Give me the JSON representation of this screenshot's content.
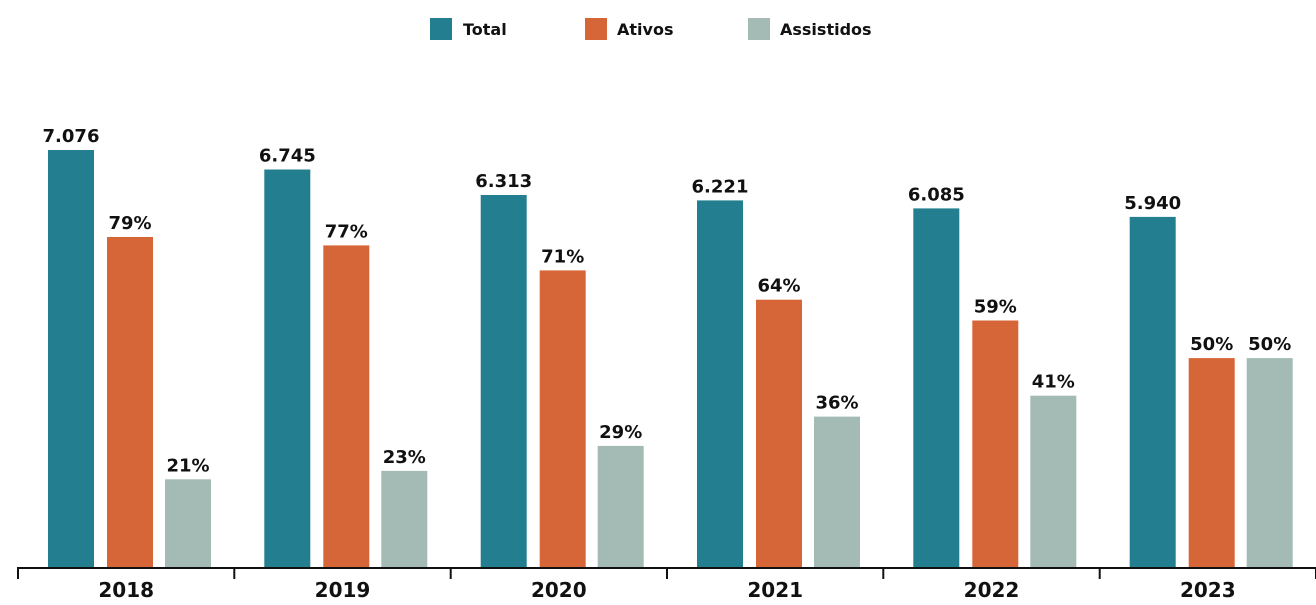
{
  "chart_data": {
    "type": "bar",
    "categories": [
      "2018",
      "2019",
      "2020",
      "2021",
      "2022",
      "2023"
    ],
    "series": [
      {
        "name": "Total",
        "color": "#237f8f",
        "values": [
          7076,
          6745,
          6313,
          6221,
          6085,
          5940
        ],
        "labels": [
          "7.076",
          "6.745",
          "6.313",
          "6.221",
          "6.085",
          "5.940"
        ]
      },
      {
        "name": "Ativos",
        "color": "#d66637",
        "values": [
          79,
          77,
          71,
          64,
          59,
          50
        ],
        "labels": [
          "79%",
          "77%",
          "71%",
          "64%",
          "59%",
          "50%"
        ]
      },
      {
        "name": "Assistidos",
        "color": "#a4bbb5",
        "values": [
          21,
          23,
          29,
          36,
          41,
          50
        ],
        "labels": [
          "21%",
          "23%",
          "29%",
          "36%",
          "41%",
          "50%"
        ]
      }
    ],
    "legend_position": "top-center",
    "grid": false
  }
}
